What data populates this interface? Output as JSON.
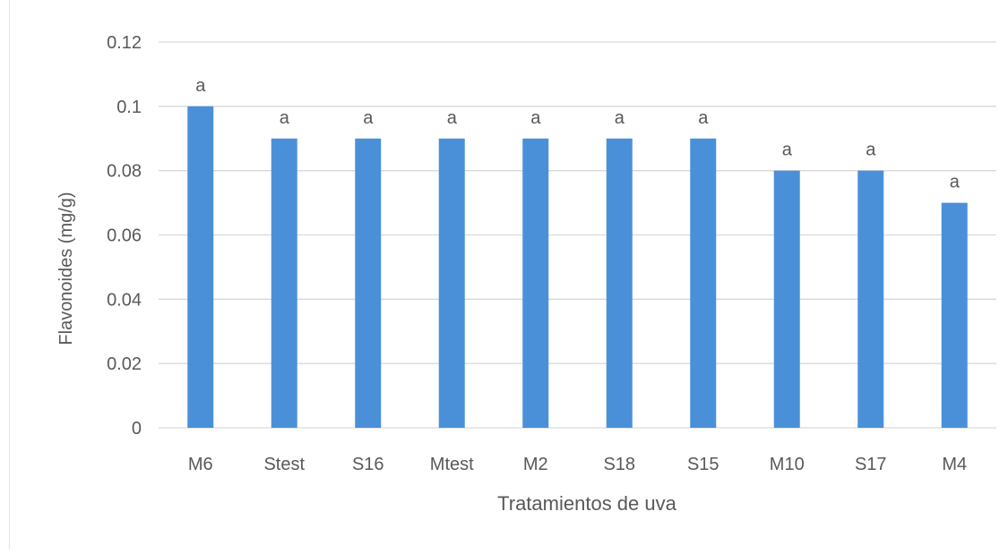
{
  "chart_data": {
    "type": "bar",
    "title": "",
    "xlabel": "Tratamientos de uva",
    "ylabel": "Flavonoides (mg/g)",
    "categories": [
      "M6",
      "Stest",
      "S16",
      "Mtest",
      "M2",
      "S18",
      "S15",
      "M10",
      "S17",
      "M4"
    ],
    "values": [
      0.1,
      0.09,
      0.09,
      0.09,
      0.09,
      0.09,
      0.09,
      0.08,
      0.08,
      0.07
    ],
    "bar_labels": [
      "a",
      "a",
      "a",
      "a",
      "a",
      "a",
      "a",
      "a",
      "a",
      "a"
    ],
    "ylim": [
      0,
      0.12
    ],
    "yticks": [
      "0",
      "0.02",
      "0.04",
      "0.06",
      "0.08",
      "0.1",
      "0.12"
    ],
    "grid": true,
    "legend": "none",
    "colors": {
      "bar": "#4a90d9",
      "grid": "#d9d9d9",
      "text": "#595959"
    }
  }
}
